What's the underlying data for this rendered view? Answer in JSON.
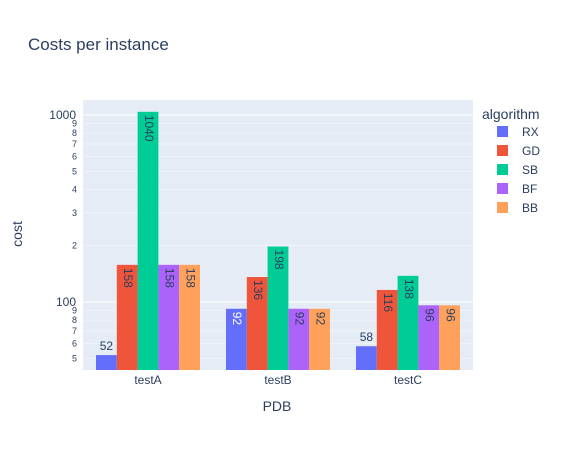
{
  "chart_data": {
    "type": "bar",
    "title": "Costs per instance",
    "xlabel": "PDB",
    "ylabel": "cost",
    "yscale": "log",
    "ylim": [
      45,
      1100
    ],
    "grid": true,
    "categories": [
      "testA",
      "testB",
      "testC"
    ],
    "legend": {
      "title": "algorithm",
      "placement": "right"
    },
    "series": [
      {
        "name": "RX",
        "color": "#636efa",
        "values": [
          52,
          92,
          58
        ]
      },
      {
        "name": "GD",
        "color": "#EF553B",
        "values": [
          158,
          136,
          116
        ]
      },
      {
        "name": "SB",
        "color": "#00cc96",
        "values": [
          1040,
          198,
          138
        ]
      },
      {
        "name": "BF",
        "color": "#ab63fa",
        "values": [
          158,
          92,
          96
        ]
      },
      {
        "name": "BB",
        "color": "#FFA15A",
        "values": [
          158,
          92,
          96
        ]
      }
    ],
    "y_major_ticks": [
      {
        "value": 100,
        "label": "100"
      },
      {
        "value": 1000,
        "label": "1000"
      }
    ],
    "y_minor_ticks": [
      {
        "value": 50,
        "label": "5"
      },
      {
        "value": 60,
        "label": "6"
      },
      {
        "value": 70,
        "label": "7"
      },
      {
        "value": 80,
        "label": "8"
      },
      {
        "value": 90,
        "label": "9"
      },
      {
        "value": 200,
        "label": "2"
      },
      {
        "value": 300,
        "label": "3"
      },
      {
        "value": 400,
        "label": "4"
      },
      {
        "value": 500,
        "label": "5"
      },
      {
        "value": 600,
        "label": "6"
      },
      {
        "value": 700,
        "label": "7"
      },
      {
        "value": 800,
        "label": "8"
      },
      {
        "value": 900,
        "label": "9"
      }
    ],
    "colors": {
      "plot_background": "#E5ECF6",
      "grid": "#ffffff",
      "text": "#2a3f5f"
    }
  }
}
